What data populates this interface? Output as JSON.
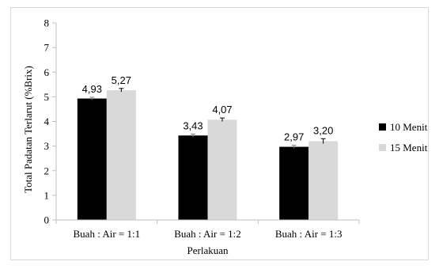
{
  "chart_data": {
    "type": "bar",
    "categories": [
      "Buah : Air = 1:1",
      "Buah : Air = 1:2",
      "Buah : Air = 1:3"
    ],
    "series": [
      {
        "name": "10 Menit",
        "values": [
          4.93,
          3.43,
          2.97
        ],
        "labels": [
          "4,93",
          "3,43",
          "2,97"
        ],
        "errors": [
          0.05,
          0.06,
          0.06
        ],
        "color": "#000000"
      },
      {
        "name": "15 Menit",
        "values": [
          5.27,
          4.07,
          3.2
        ],
        "labels": [
          "5,27",
          "4,07",
          "3,20"
        ],
        "errors": [
          0.07,
          0.07,
          0.1
        ],
        "color": "#d9d9d9"
      }
    ],
    "xlabel": "Perlakuan",
    "ylabel": "Total Padatan Terlarut (%Brix)",
    "ylim": [
      0,
      8
    ],
    "yticks": [
      "0",
      "1",
      "2",
      "3",
      "4",
      "5",
      "6",
      "7",
      "8"
    ],
    "grid": false,
    "legend": "right"
  }
}
